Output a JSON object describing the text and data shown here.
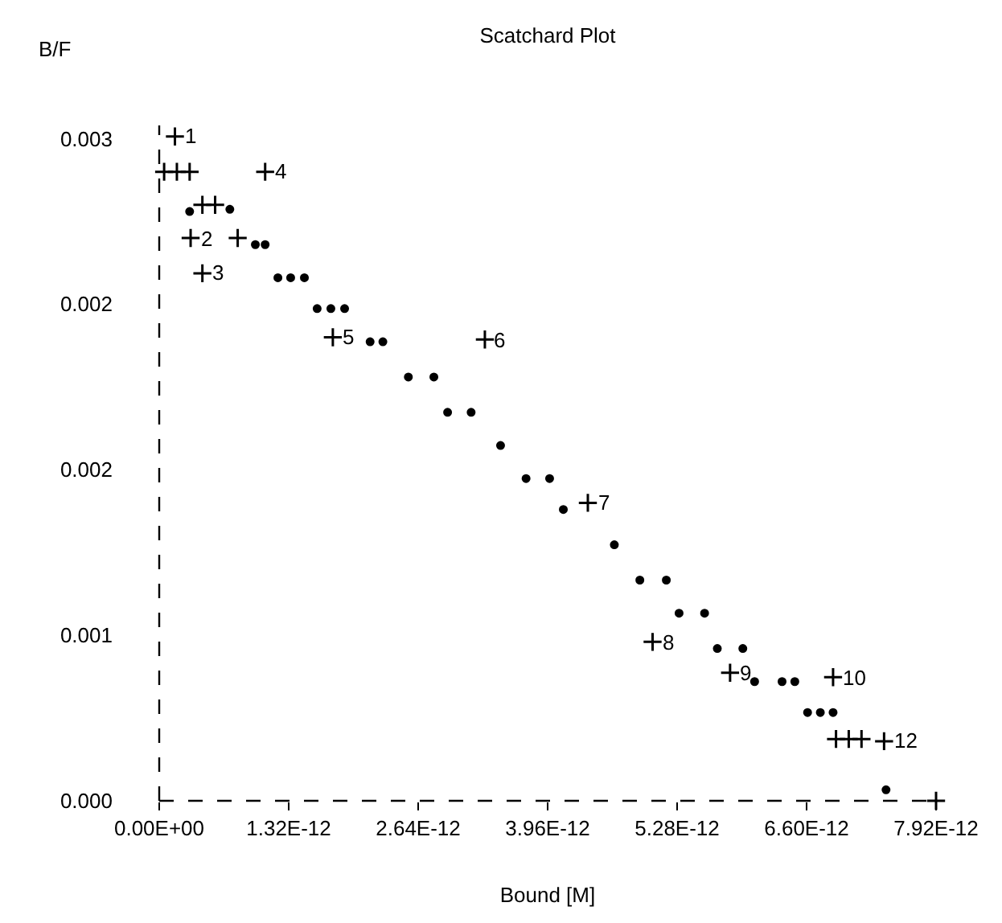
{
  "chart_data": {
    "type": "scatter",
    "title": "Scatchard Plot",
    "xlabel": "Bound [M]",
    "ylabel": "B/F",
    "x": [
      3.1e-13,
      7.2e-13,
      9.8e-13,
      1.08e-12,
      1.21e-12,
      1.34e-12,
      1.48e-12,
      1.61e-12,
      1.75e-12,
      1.89e-12,
      2.15e-12,
      2.28e-12,
      2.54e-12,
      2.8e-12,
      2.94e-12,
      3.18e-12,
      3.48e-12,
      3.74e-12,
      3.98e-12,
      4.12e-12,
      4.64e-12,
      4.9e-12,
      5.17e-12,
      5.3e-12,
      5.56e-12,
      5.69e-12,
      5.95e-12,
      6.07e-12,
      6.35e-12,
      6.48e-12,
      6.61e-12,
      6.74e-12,
      6.87e-12,
      7.41e-12
    ],
    "series": [
      {
        "color": "#000000",
        "values": [
          0.00267,
          0.00268,
          0.00252,
          0.00252,
          0.00237,
          0.00237,
          0.00237,
          0.00223,
          0.00223,
          0.00223,
          0.00208,
          0.00208,
          0.00192,
          0.00192,
          0.00176,
          0.00176,
          0.00161,
          0.00146,
          0.00146,
          0.00132,
          0.00116,
          0.001,
          0.001,
          0.00085,
          0.00085,
          0.00069,
          0.00069,
          0.00054,
          0.00054,
          0.00054,
          0.0004,
          0.0004,
          0.0004,
          5e-05
        ]
      },
      {
        "color": "#000000",
        "marker": "cross",
        "x": [
          1.6e-13,
          1.08e-12,
          3.2e-13,
          4.4e-13,
          1.77e-12,
          3.32e-12,
          4.37e-12,
          5.03e-12,
          5.82e-12,
          6.87e-12,
          6.9e-12,
          7.39e-12
        ],
        "values": [
          0.00301,
          0.00285,
          0.00255,
          0.00239,
          0.0021,
          0.00209,
          0.00135,
          0.00072,
          0.00058,
          0.00056,
          0.00028,
          0.00027
        ]
      },
      {
        "color": "#000000",
        "marker": "cross",
        "x": [
          5e-14,
          1.8e-13,
          3.1e-13,
          4.4e-13,
          5.7e-13,
          8e-13,
          7.03e-12,
          7.16e-12,
          7.92e-12
        ],
        "values": [
          0.00285,
          0.00285,
          0.00285,
          0.0027,
          0.0027,
          0.00255,
          0.00028,
          0.00028,
          0.0
        ]
      }
    ],
    "marker": "circle",
    "annotations": [
      {
        "text": "1",
        "x": 1.6e-13,
        "y": 0.00301
      },
      {
        "text": "4",
        "x": 1.08e-12,
        "y": 0.00285
      },
      {
        "text": "2",
        "x": 3.2e-13,
        "y": 0.00255
      },
      {
        "text": "3",
        "x": 4.4e-13,
        "y": 0.00239
      },
      {
        "text": "5",
        "x": 1.77e-12,
        "y": 0.0021
      },
      {
        "text": "6",
        "x": 3.32e-12,
        "y": 0.00209
      },
      {
        "text": "7",
        "x": 4.37e-12,
        "y": 0.00135
      },
      {
        "text": "8",
        "x": 5.03e-12,
        "y": 0.00072
      },
      {
        "text": "9",
        "x": 5.82e-12,
        "y": 0.00058
      },
      {
        "text": "10",
        "x": 6.87e-12,
        "y": 0.00056
      },
      {
        "text": "12",
        "x": 7.39e-12,
        "y": 0.00027
      }
    ],
    "xlim": [
      0,
      7.92e-12
    ],
    "xticks": [
      {
        "value": 0,
        "label": "0.00E+00"
      },
      {
        "value": 1.32e-12,
        "label": "1.32E-12"
      },
      {
        "value": 2.64e-12,
        "label": "2.64E-12"
      },
      {
        "value": 3.96e-12,
        "label": "3.96E-12"
      },
      {
        "value": 5.28e-12,
        "label": "5.28E-12"
      },
      {
        "value": 6.6e-12,
        "label": "6.60E-12"
      },
      {
        "value": 7.92e-12,
        "label": "7.92E-12"
      }
    ],
    "ylim": [
      0,
      0.00306
    ],
    "yticks": [
      {
        "value": 0,
        "label": "0.000"
      },
      {
        "value": 0.00075,
        "label": "0.001"
      },
      {
        "value": 0.0015,
        "label": "0.002"
      },
      {
        "value": 0.00225,
        "label": "0.002"
      },
      {
        "value": 0.003,
        "label": "0.003"
      }
    ]
  }
}
